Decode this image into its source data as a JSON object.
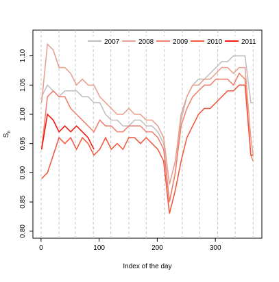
{
  "chart_data": {
    "type": "line",
    "xlabel": "Index of the day",
    "ylabel": "S",
    "ylabel_sub": "n",
    "x": [
      1,
      11,
      21,
      31,
      41,
      51,
      61,
      71,
      81,
      91,
      101,
      111,
      121,
      131,
      141,
      151,
      161,
      171,
      181,
      191,
      201,
      211,
      221,
      231,
      241,
      251,
      261,
      271,
      281,
      291,
      301,
      311,
      321,
      331,
      341,
      351,
      361,
      365
    ],
    "series": [
      {
        "name": "2007",
        "color": "#c0c0c0",
        "values": [
          1.03,
          1.05,
          1.04,
          1.03,
          1.04,
          1.04,
          1.04,
          1.03,
          1.03,
          1.02,
          1.02,
          1.0,
          0.99,
          0.99,
          0.98,
          0.98,
          0.99,
          0.99,
          0.98,
          0.98,
          0.97,
          0.95,
          0.85,
          0.9,
          0.99,
          1.03,
          1.05,
          1.06,
          1.06,
          1.07,
          1.08,
          1.09,
          1.09,
          1.1,
          1.1,
          1.1,
          1.02,
          1.02
        ]
      },
      {
        "name": "2008",
        "color": "#e8a090",
        "values": [
          1.02,
          1.12,
          1.11,
          1.08,
          1.08,
          1.07,
          1.05,
          1.06,
          1.05,
          1.05,
          1.03,
          1.02,
          1.01,
          1.0,
          1.0,
          1.01,
          1.0,
          1.0,
          0.99,
          0.99,
          0.98,
          0.96,
          0.88,
          0.92,
          1.0,
          1.03,
          1.05,
          1.05,
          1.06,
          1.06,
          1.07,
          1.08,
          1.08,
          1.07,
          1.08,
          1.08,
          0.96,
          0.93
        ]
      },
      {
        "name": "2009",
        "color": "#f08070",
        "values": [
          0.94,
          1.03,
          1.04,
          1.03,
          1.03,
          1.01,
          1.0,
          0.99,
          0.98,
          0.97,
          0.99,
          0.98,
          0.98,
          0.97,
          0.97,
          0.98,
          0.98,
          0.98,
          0.97,
          0.97,
          0.96,
          0.94,
          0.85,
          0.9,
          0.98,
          1.01,
          1.03,
          1.04,
          1.05,
          1.05,
          1.06,
          1.06,
          1.06,
          1.05,
          1.07,
          1.06,
          0.93,
          0.92
        ]
      },
      {
        "name": "2010",
        "color": "#f05a40",
        "values": [
          0.89,
          0.9,
          0.93,
          0.96,
          0.95,
          0.96,
          0.94,
          0.96,
          0.95,
          0.93,
          0.94,
          0.96,
          0.94,
          0.95,
          0.94,
          0.96,
          0.96,
          0.95,
          0.96,
          0.95,
          0.94,
          0.92,
          0.83,
          0.87,
          0.92,
          0.96,
          0.98,
          1.0,
          1.01,
          1.01,
          1.02,
          1.03,
          1.04,
          1.04,
          1.05,
          1.05,
          0.93,
          0.93
        ]
      },
      {
        "name": "2011",
        "color": "#ee1a10",
        "values": [
          0.94,
          1.0,
          0.99,
          0.97,
          0.98,
          0.97,
          0.98,
          0.97,
          0.96,
          0.94,
          null,
          null,
          null,
          null,
          null,
          null,
          null,
          null,
          null,
          null,
          null,
          null,
          null,
          null,
          null,
          null,
          null,
          null,
          null,
          null,
          null,
          null,
          null,
          null,
          null,
          null,
          null,
          null
        ]
      }
    ],
    "xlim": [
      -14,
      380
    ],
    "xticks": [
      0,
      100,
      200,
      300
    ],
    "ylim": [
      0.788,
      1.144
    ],
    "yticks": [
      {
        "value": 0.8,
        "label": "0.80"
      },
      {
        "value": 0.85,
        "label": "0.85"
      },
      {
        "value": 0.9,
        "label": "0.90"
      },
      {
        "value": 0.95,
        "label": "0.95"
      },
      {
        "value": 1.0,
        "label": "1.00"
      },
      {
        "value": 1.05,
        "label": "1.05"
      },
      {
        "value": 1.1,
        "label": "1.10"
      }
    ],
    "vlines": [
      0,
      31,
      59,
      90,
      120,
      151,
      181,
      212,
      243,
      273,
      304,
      334,
      365
    ],
    "legend": "top"
  }
}
